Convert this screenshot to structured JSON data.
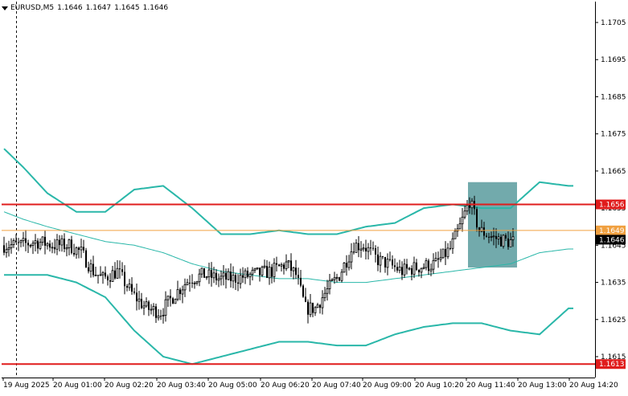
{
  "header": {
    "symbol": "EURUSD,M5",
    "open": "1.1646",
    "high": "1.1647",
    "low": "1.1645",
    "close": "1.1646"
  },
  "colors": {
    "background": "#ffffff",
    "candle": "#000000",
    "bands": "#2ab7a9",
    "level_line": "#e01c1c",
    "last_line": "#f0a040",
    "price_tag": "#000000",
    "level_tag": "#e01c1c",
    "highlight": "#5f9ea0"
  },
  "chart_data": {
    "type": "candlestick",
    "instrument": "EURUSD",
    "timeframe": "M5",
    "y_ticks": [
      "1.1705",
      "1.1695",
      "1.1685",
      "1.1675",
      "1.1665",
      "1.1655",
      "1.1645",
      "1.1635",
      "1.1625",
      "1.1615"
    ],
    "x_ticks": [
      "19 Aug 2025",
      "20 Aug 01:00",
      "20 Aug 02:20",
      "20 Aug 03:40",
      "20 Aug 05:00",
      "20 Aug 06:20",
      "20 Aug 07:40",
      "20 Aug 09:00",
      "20 Aug 10:20",
      "20 Aug 11:40",
      "20 Aug 13:00",
      "20 Aug 14:20"
    ],
    "levels": [
      {
        "label": "1.1656",
        "value": 1.1656,
        "kind": "resistance"
      },
      {
        "label": "1.1613",
        "value": 1.1613,
        "kind": "support"
      }
    ],
    "last_price": {
      "label": "1.1646",
      "value": 1.1646
    },
    "level_marker": {
      "label": "1.1649",
      "value": 1.1649
    },
    "bollinger": {
      "index": [
        0,
        8,
        18,
        30,
        42,
        54,
        66,
        78,
        90,
        102,
        114,
        126,
        138,
        150,
        162,
        174,
        186,
        198,
        210,
        222,
        234
      ],
      "upper": [
        1.1671,
        1.1666,
        1.1659,
        1.1654,
        1.1654,
        1.166,
        1.1661,
        1.1655,
        1.1648,
        1.1648,
        1.1649,
        1.1648,
        1.1648,
        1.165,
        1.1651,
        1.1655,
        1.1656,
        1.1655,
        1.1655,
        1.1662,
        1.1661
      ],
      "middle": [
        1.1654,
        1.1652,
        1.165,
        1.1648,
        1.1646,
        1.1645,
        1.1643,
        1.164,
        1.1638,
        1.1637,
        1.1636,
        1.1636,
        1.1635,
        1.1635,
        1.1636,
        1.1637,
        1.1638,
        1.1639,
        1.164,
        1.1643,
        1.1644
      ],
      "lower": [
        1.1637,
        1.1637,
        1.1637,
        1.1635,
        1.1631,
        1.1622,
        1.1615,
        1.1613,
        1.1615,
        1.1617,
        1.1619,
        1.1619,
        1.1618,
        1.1618,
        1.1621,
        1.1623,
        1.1624,
        1.1624,
        1.1622,
        1.1621,
        1.1628
      ]
    },
    "anchors": [
      [
        0,
        1.1645
      ],
      [
        8,
        1.1645
      ],
      [
        14,
        1.1646
      ],
      [
        22,
        1.1645
      ],
      [
        28,
        1.1645
      ],
      [
        33,
        1.1643
      ],
      [
        38,
        1.1638
      ],
      [
        42,
        1.1636
      ],
      [
        48,
        1.1638
      ],
      [
        54,
        1.1632
      ],
      [
        60,
        1.1628
      ],
      [
        66,
        1.1627
      ],
      [
        72,
        1.1632
      ],
      [
        78,
        1.1636
      ],
      [
        84,
        1.1637
      ],
      [
        90,
        1.1636
      ],
      [
        96,
        1.1636
      ],
      [
        104,
        1.1637
      ],
      [
        112,
        1.1638
      ],
      [
        118,
        1.164
      ],
      [
        122,
        1.1637
      ],
      [
        126,
        1.1628
      ],
      [
        130,
        1.1628
      ],
      [
        134,
        1.1632
      ],
      [
        140,
        1.1637
      ],
      [
        146,
        1.1645
      ],
      [
        150,
        1.1645
      ],
      [
        156,
        1.1641
      ],
      [
        160,
        1.164
      ],
      [
        166,
        1.1638
      ],
      [
        172,
        1.1639
      ],
      [
        180,
        1.164
      ],
      [
        186,
        1.1644
      ],
      [
        190,
        1.165
      ],
      [
        194,
        1.1657
      ],
      [
        198,
        1.1649
      ],
      [
        204,
        1.1647
      ],
      [
        210,
        1.1646
      ]
    ],
    "highlight_box": {
      "from_index": 193,
      "to_index": 212,
      "top": 1.1662,
      "bottom": 1.1639
    }
  }
}
